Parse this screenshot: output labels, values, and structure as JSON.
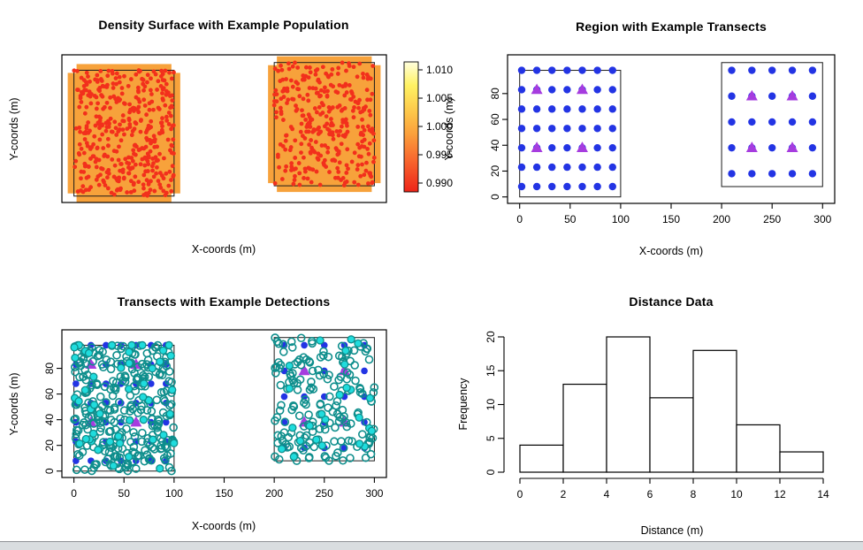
{
  "figure": {
    "background": "#FFFFFF",
    "footer": {
      "bar_color": "#D9DDE0",
      "border_color": "#8E9196"
    }
  },
  "chart_data": [
    {
      "id": "density-surface",
      "type": "scatter",
      "title": "Density Surface with Example Population",
      "xlabel": "X-coords (m)",
      "ylabel": "Y-coords (m)",
      "x_ticks": [],
      "y_ticks": [],
      "x_range": [
        -12,
        312
      ],
      "y_range": [
        -5,
        110
      ],
      "strata_rects": [
        {
          "x": [
            0,
            100
          ],
          "y": [
            0,
            98
          ]
        },
        {
          "x": [
            200,
            300
          ],
          "y": [
            8,
            104
          ]
        }
      ],
      "density_surface": {
        "uniform_value": 1.0,
        "fill_color": "#F7A23B",
        "outline_color": "#1A1A1A"
      },
      "population": {
        "marker": "filled-circle",
        "color": "#F2301C",
        "counts_by_stratum": [
          420,
          340
        ]
      },
      "colorbar": {
        "min": 0.99,
        "max": 1.01,
        "tick_labels": [
          "1.010",
          "1.005",
          "1.000",
          "0.995",
          "0.990"
        ],
        "gradient_top_to_bottom": [
          [
            "0",
            "#FFFFDE"
          ],
          [
            "0.18",
            "#FFF263"
          ],
          [
            "0.38",
            "#FDC84A"
          ],
          [
            "0.55",
            "#FBA13C"
          ],
          [
            "0.75",
            "#F8682E"
          ],
          [
            "1",
            "#EE2418"
          ]
        ]
      }
    },
    {
      "id": "region-transects",
      "type": "scatter",
      "title": "Region with Example Transects",
      "xlabel": "X-coords (m)",
      "ylabel": "Y-coords (m)",
      "x_ticks": [
        0,
        50,
        100,
        150,
        200,
        250,
        300
      ],
      "y_ticks": [
        0,
        20,
        40,
        60,
        80
      ],
      "x_range": [
        -12,
        312
      ],
      "y_range": [
        -5,
        110
      ],
      "strata_rects": [
        {
          "x": [
            0,
            100
          ],
          "y": [
            0,
            98
          ]
        },
        {
          "x": [
            200,
            300
          ],
          "y": [
            8,
            104
          ]
        }
      ],
      "transect_grid": {
        "marker": "filled-circle",
        "color": "#2334E4",
        "left": {
          "x": [
            2,
            17,
            32,
            47,
            62,
            77,
            92
          ],
          "y": [
            8,
            23,
            38,
            53,
            68,
            83,
            98
          ]
        },
        "right": {
          "x": [
            210,
            230,
            250,
            270,
            290
          ],
          "y": [
            18,
            38,
            58,
            78,
            98
          ]
        }
      },
      "example_transects": {
        "marker": "triangle",
        "color": "#A63CDF",
        "points": [
          [
            17,
            38
          ],
          [
            62,
            38
          ],
          [
            17,
            83
          ],
          [
            62,
            83
          ],
          [
            230,
            38
          ],
          [
            270,
            38
          ],
          [
            230,
            78
          ],
          [
            270,
            78
          ]
        ]
      }
    },
    {
      "id": "detections",
      "type": "scatter",
      "title": "Transects with Example Detections",
      "xlabel": "X-coords (m)",
      "ylabel": "Y-coords (m)",
      "x_ticks": [
        0,
        50,
        100,
        150,
        200,
        250,
        300
      ],
      "y_ticks": [
        0,
        20,
        40,
        60,
        80
      ],
      "x_range": [
        -12,
        312
      ],
      "y_range": [
        -5,
        110
      ],
      "strata_rects": [
        {
          "x": [
            0,
            100
          ],
          "y": [
            0,
            98
          ]
        },
        {
          "x": [
            200,
            300
          ],
          "y": [
            8,
            104
          ]
        }
      ],
      "transect_grid": {
        "marker": "filled-circle",
        "color": "#2334E4",
        "left": {
          "x": [
            2,
            17,
            32,
            47,
            62,
            77,
            92
          ],
          "y": [
            8,
            23,
            38,
            53,
            68,
            83,
            98
          ]
        },
        "right": {
          "x": [
            210,
            230,
            250,
            270,
            290
          ],
          "y": [
            18,
            38,
            58,
            78,
            98
          ]
        }
      },
      "example_transects": {
        "marker": "triangle",
        "color": "#A63CDF",
        "points": [
          [
            17,
            38
          ],
          [
            62,
            38
          ],
          [
            17,
            83
          ],
          [
            62,
            83
          ],
          [
            230,
            38
          ],
          [
            270,
            38
          ],
          [
            230,
            78
          ],
          [
            270,
            78
          ]
        ]
      },
      "population": {
        "marker": "open-circle",
        "stroke": "#0E8E8C",
        "counts_by_stratum": [
          290,
          175
        ]
      },
      "detections": {
        "marker": "filled-circle",
        "fill": "#20DCDD",
        "stroke": "#0E8E8C",
        "counts_by_stratum": [
          50,
          26
        ]
      }
    },
    {
      "id": "distance-data",
      "type": "histogram",
      "title": "Distance Data",
      "xlabel": "Distance (m)",
      "ylabel": "Frequency",
      "bin_edges": [
        0,
        2,
        4,
        6,
        8,
        10,
        12,
        14
      ],
      "frequencies": [
        4,
        13,
        20,
        11,
        18,
        7,
        3
      ],
      "x_ticks": [
        0,
        2,
        4,
        6,
        8,
        10,
        12,
        14
      ],
      "y_ticks": [
        0,
        5,
        10,
        15,
        20
      ],
      "xlim": [
        0,
        14
      ],
      "ylim": [
        0,
        20
      ],
      "bar_fill": "#FFFFFF",
      "bar_stroke": "#000000"
    }
  ]
}
